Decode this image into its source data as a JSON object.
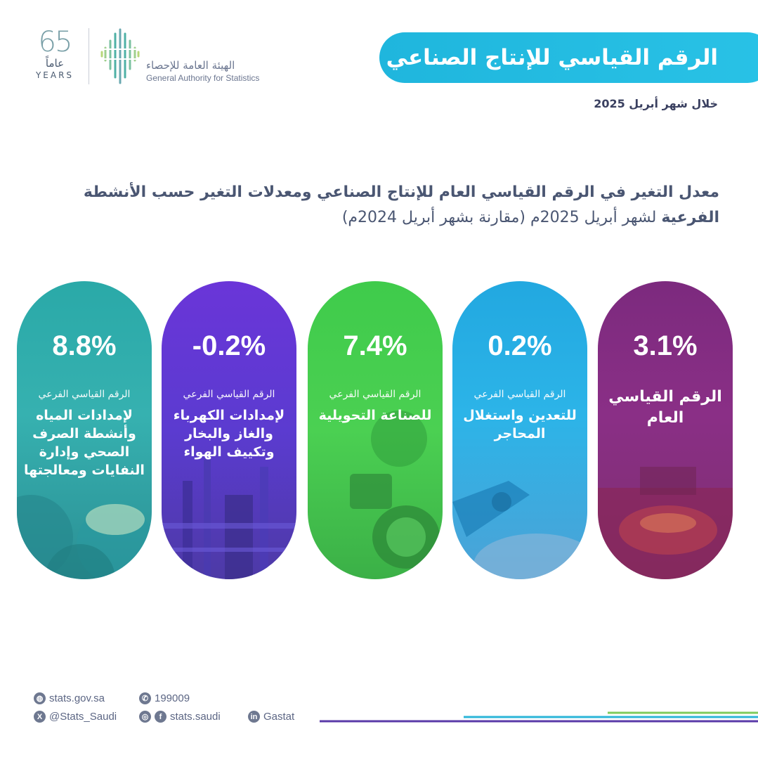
{
  "header": {
    "anniversary_number": "65",
    "anniversary_ar": "عاماً",
    "anniversary_en": "YEARS",
    "org_name_ar": "الهيئة العامة للإحصاء",
    "org_name_en": "General Authority for Statistics"
  },
  "title": "الرقم القياسي للإنتاج الصناعي",
  "subtitle": "خلال شهر أبريل 2025",
  "headline": {
    "bold_part": "معدل التغير في الرقم القياسي العام للإنتاج الصناعي ومعدلات التغير حسب الأنشطة الفرعية",
    "rest": " لشهر أبريل 2025م (مقارنة بشهر أبريل 2024م)"
  },
  "cards": [
    {
      "value": "3.1%",
      "label_main": "الرقم القياسي العام",
      "color": "#8a2f86",
      "image_icon": "industrial-sparks-photo"
    },
    {
      "value": "0.2%",
      "prefix": "الرقم القياسي الفرعي",
      "label": "للتعدين واستغلال المحاجر",
      "color": "#2cb4e8",
      "image_icon": "mining-excavator-photo"
    },
    {
      "value": "7.4%",
      "prefix": "الرقم القياسي الفرعي",
      "label": "للصناعة التحويلية",
      "color": "#4bd052",
      "image_icon": "electric-motor-photo"
    },
    {
      "value": "-0.2%",
      "prefix": "الرقم القياسي الفرعي",
      "label": "لإمدادات الكهرباء والغاز والبخار وتكييف الهواء",
      "color": "#5b3bd0",
      "image_icon": "power-plant-photo"
    },
    {
      "value": "8.8%",
      "prefix": "الرقم القياسي الفرعي",
      "label": "لإمدادات المياه وأنشطة الصرف الصحي وإدارة النفايات ومعالجتها",
      "color": "#36b1b0",
      "image_icon": "water-pipes-photo"
    }
  ],
  "footer": {
    "website": "stats.gov.sa",
    "phone": "199009",
    "twitter": "@Stats_Saudi",
    "social": "stats.saudi",
    "linkedin": "Gastat"
  }
}
